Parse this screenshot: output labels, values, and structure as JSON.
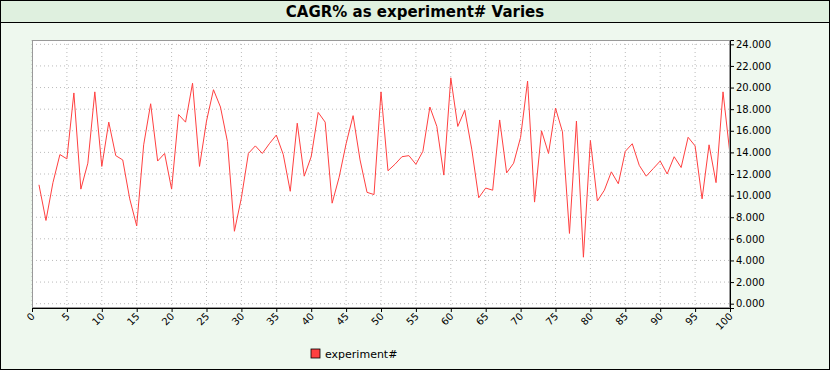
{
  "chart_data": {
    "type": "line",
    "title": "CAGR% as experiment# Varies",
    "x": [
      1,
      2,
      3,
      4,
      5,
      6,
      7,
      8,
      9,
      10,
      11,
      12,
      13,
      14,
      15,
      16,
      17,
      18,
      19,
      20,
      21,
      22,
      23,
      24,
      25,
      26,
      27,
      28,
      29,
      30,
      31,
      32,
      33,
      34,
      35,
      36,
      37,
      38,
      39,
      40,
      41,
      42,
      43,
      44,
      45,
      46,
      47,
      48,
      49,
      50,
      51,
      52,
      53,
      54,
      55,
      56,
      57,
      58,
      59,
      60,
      61,
      62,
      63,
      64,
      65,
      66,
      67,
      68,
      69,
      70,
      71,
      72,
      73,
      74,
      75,
      76,
      77,
      78,
      79,
      80,
      81,
      82,
      83,
      84,
      85,
      86,
      87,
      88,
      89,
      90,
      91,
      92,
      93,
      94,
      95,
      96,
      97,
      98,
      99,
      100
    ],
    "series": [
      {
        "name": "experiment#",
        "color": "#ff4040",
        "values": [
          11.0,
          7.7,
          11.2,
          13.8,
          13.4,
          19.5,
          10.6,
          13.0,
          19.6,
          12.7,
          16.8,
          13.7,
          13.3,
          9.7,
          7.2,
          14.7,
          18.5,
          13.2,
          13.9,
          10.6,
          17.5,
          16.8,
          20.4,
          12.7,
          16.9,
          19.8,
          18.2,
          15.0,
          6.7,
          9.8,
          13.9,
          14.6,
          13.9,
          14.8,
          15.6,
          13.8,
          10.4,
          16.7,
          11.8,
          13.6,
          17.7,
          16.8,
          9.3,
          11.7,
          14.8,
          17.4,
          13.3,
          10.3,
          10.1,
          19.6,
          12.3,
          12.9,
          13.6,
          13.7,
          12.9,
          14.1,
          18.2,
          16.4,
          11.9,
          20.9,
          16.4,
          17.9,
          14.3,
          9.8,
          10.7,
          10.5,
          17.0,
          12.1,
          13.0,
          15.4,
          20.6,
          9.4,
          16.0,
          13.9,
          18.1,
          15.9,
          6.5,
          16.9,
          4.3,
          15.1,
          9.5,
          10.5,
          12.2,
          11.1,
          14.1,
          14.8,
          12.8,
          11.8,
          12.5,
          13.2,
          12.0,
          13.6,
          12.6,
          15.4,
          14.6,
          9.7,
          14.7,
          11.2,
          19.6,
          13.8
        ]
      }
    ],
    "xlim": [
      0,
      100
    ],
    "xticks": [
      0,
      5,
      10,
      15,
      20,
      25,
      30,
      35,
      40,
      45,
      50,
      55,
      60,
      65,
      70,
      75,
      80,
      85,
      90,
      95,
      100
    ],
    "ylim": [
      -0.4,
      24.4
    ],
    "yticks": [
      {
        "value": 0,
        "label": "0.000"
      },
      {
        "value": 2,
        "label": "2.000"
      },
      {
        "value": 4,
        "label": "4.000"
      },
      {
        "value": 6,
        "label": "6.000"
      },
      {
        "value": 8,
        "label": "8.000"
      },
      {
        "value": 10,
        "label": "10.000"
      },
      {
        "value": 12,
        "label": "12.000"
      },
      {
        "value": 14,
        "label": "14.000"
      },
      {
        "value": 16,
        "label": "16.000"
      },
      {
        "value": 18,
        "label": "18.000"
      },
      {
        "value": 20,
        "label": "20.000"
      },
      {
        "value": 22,
        "label": "22.000"
      },
      {
        "value": 24,
        "label": "24.000"
      }
    ],
    "grid": true,
    "legend": "bottom"
  }
}
